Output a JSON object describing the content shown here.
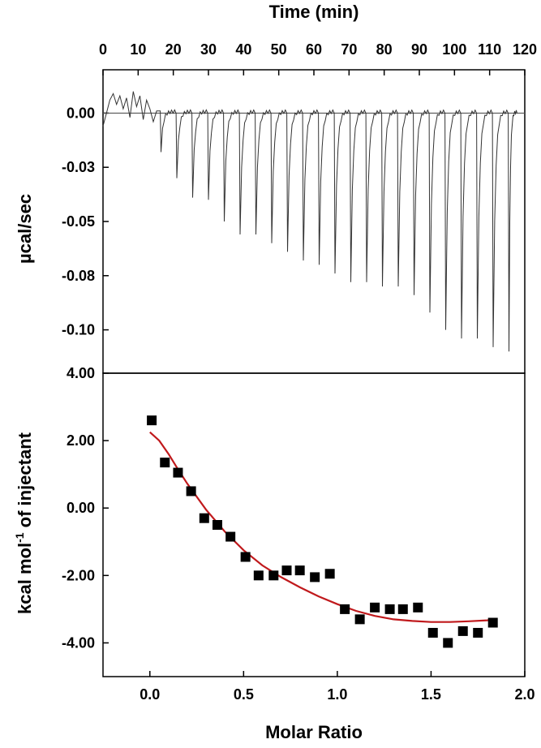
{
  "chart_data": [
    {
      "type": "line",
      "xlabel": "Time (min)",
      "ylabel": "µcal/sec",
      "xlim": [
        0,
        120
      ],
      "ylim": [
        -0.12,
        0.02
      ],
      "x_ticks": [
        "0",
        "10",
        "20",
        "30",
        "40",
        "50",
        "60",
        "70",
        "80",
        "90",
        "100",
        "110",
        "120"
      ],
      "y_ticks": [
        "0.00",
        "-0.03",
        "-0.05",
        "-0.08",
        "-0.10"
      ],
      "y_tick_values": [
        0.0,
        -0.025,
        -0.05,
        -0.075,
        -0.1
      ],
      "baseline": 0.0,
      "injection_times": [
        16.5,
        21,
        25.5,
        30,
        34.5,
        39,
        43.5,
        48,
        52.5,
        57,
        61.5,
        66,
        70.5,
        75,
        79.5,
        84,
        88.5,
        93,
        97.5,
        102,
        106.5,
        111,
        115.5
      ],
      "peak_minima": [
        -0.018,
        -0.03,
        -0.039,
        -0.04,
        -0.05,
        -0.056,
        -0.056,
        -0.06,
        -0.064,
        -0.068,
        -0.07,
        -0.074,
        -0.078,
        -0.078,
        -0.08,
        -0.08,
        -0.084,
        -0.092,
        -0.1,
        -0.104,
        -0.104,
        -0.108,
        -0.11
      ],
      "grid": false
    },
    {
      "type": "scatter",
      "xlabel": "Molar Ratio",
      "ylabel": "kcal mol-1 of injectant",
      "ylabel_main": "kcal mol",
      "ylabel_sup": "-1",
      "ylabel_tail": " of injectant",
      "xlim": [
        -0.25,
        2.0
      ],
      "ylim": [
        -5.0,
        4.0
      ],
      "x_ticks": [
        "0.0",
        "0.5",
        "1.0",
        "1.5",
        "2.0"
      ],
      "y_ticks": [
        "4.00",
        "2.00",
        "0.00",
        "-2.00",
        "-4.00"
      ],
      "y_tick_values": [
        4,
        2,
        0,
        -2,
        -4
      ],
      "x": [
        0.01,
        0.08,
        0.15,
        0.22,
        0.29,
        0.36,
        0.43,
        0.51,
        0.58,
        0.66,
        0.73,
        0.8,
        0.88,
        0.96,
        1.04,
        1.12,
        1.2,
        1.28,
        1.35,
        1.43,
        1.51,
        1.59,
        1.67,
        1.75,
        1.83
      ],
      "y": [
        2.6,
        1.35,
        1.05,
        0.5,
        -0.3,
        -0.5,
        -0.85,
        -1.45,
        -2.0,
        -2.0,
        -1.85,
        -1.85,
        -2.05,
        -1.95,
        -3.0,
        -3.3,
        -2.95,
        -3.0,
        -3.0,
        -2.95,
        -3.7,
        -4.0,
        -3.65,
        -3.7,
        -3.4
      ],
      "fit_x": [
        0.0,
        0.05,
        0.1,
        0.15,
        0.2,
        0.3,
        0.4,
        0.5,
        0.6,
        0.7,
        0.8,
        0.9,
        1.0,
        1.1,
        1.2,
        1.3,
        1.4,
        1.5,
        1.6,
        1.7,
        1.8,
        1.84
      ],
      "fit_y": [
        2.25,
        2.0,
        1.6,
        1.15,
        0.72,
        -0.05,
        -0.7,
        -1.25,
        -1.7,
        -2.05,
        -2.35,
        -2.62,
        -2.85,
        -3.05,
        -3.2,
        -3.3,
        -3.35,
        -3.38,
        -3.38,
        -3.36,
        -3.33,
        -3.3
      ],
      "marker_color": "#000000",
      "fit_color": "#c0191c",
      "grid": false
    }
  ]
}
